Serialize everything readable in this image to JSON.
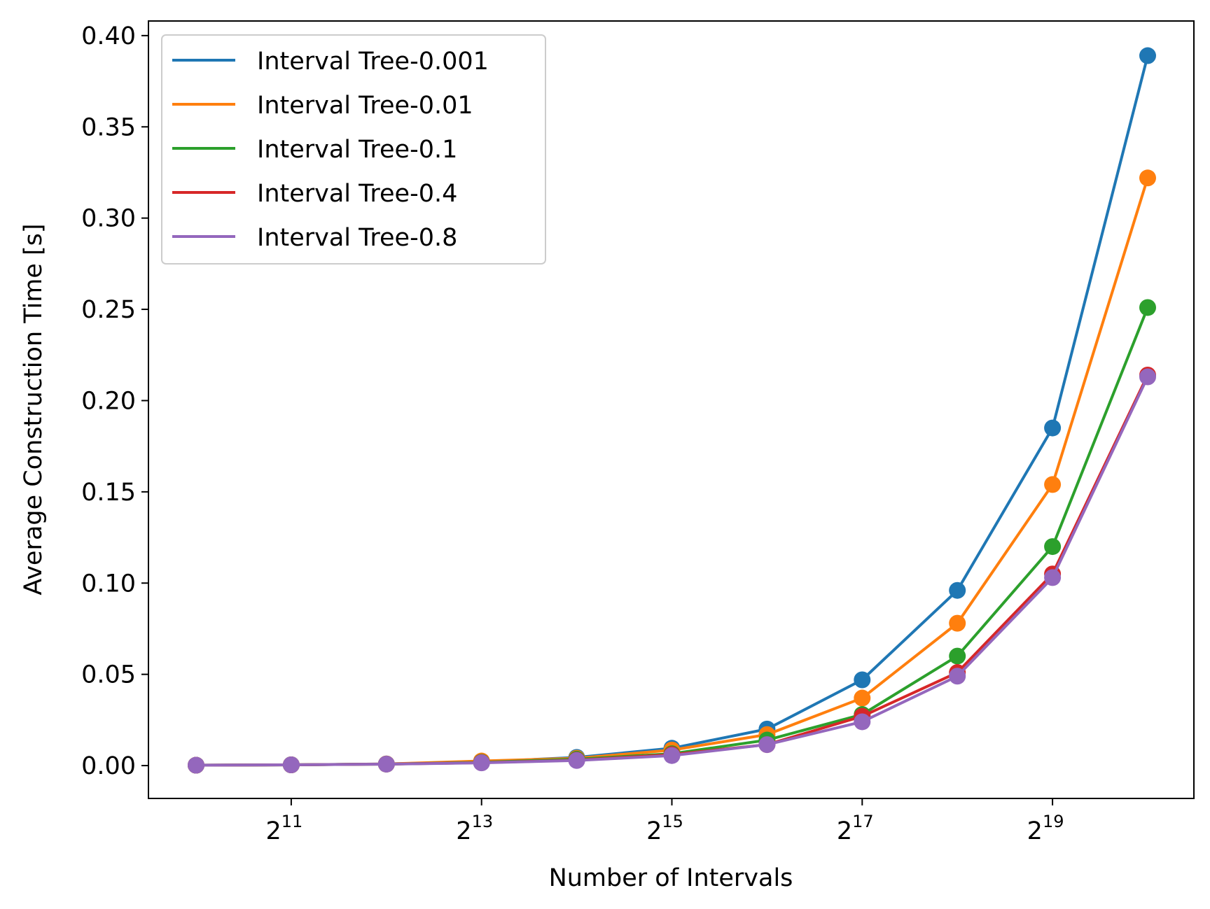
{
  "chart_data": {
    "type": "line",
    "xlabel": "Number of Intervals",
    "ylabel": "Average Construction Time [s]",
    "x_scale": "log2",
    "x": [
      1024,
      2048,
      4096,
      8192,
      16384,
      32768,
      65536,
      131072,
      262144,
      524288,
      1048576
    ],
    "xticks": [
      {
        "value": 2048,
        "base": "2",
        "exp": "11"
      },
      {
        "value": 8192,
        "base": "2",
        "exp": "13"
      },
      {
        "value": 32768,
        "base": "2",
        "exp": "15"
      },
      {
        "value": 131072,
        "base": "2",
        "exp": "17"
      },
      {
        "value": 524288,
        "base": "2",
        "exp": "19"
      }
    ],
    "ylim": [
      -0.018,
      0.408
    ],
    "yticks": [
      "0.00",
      "0.05",
      "0.10",
      "0.15",
      "0.20",
      "0.25",
      "0.30",
      "0.35",
      "0.40"
    ],
    "legend_position": "top-left",
    "grid": false,
    "series": [
      {
        "name": "Interval Tree-0.001",
        "color": "#1f77b4",
        "values": [
          0.0002,
          0.0004,
          0.0009,
          0.002,
          0.0045,
          0.0095,
          0.02,
          0.047,
          0.096,
          0.185,
          0.389
        ]
      },
      {
        "name": "Interval Tree-0.01",
        "color": "#ff7f0e",
        "values": [
          0.0002,
          0.0004,
          0.0009,
          0.0025,
          0.004,
          0.0085,
          0.017,
          0.037,
          0.078,
          0.154,
          0.322
        ]
      },
      {
        "name": "Interval Tree-0.1",
        "color": "#2ca02c",
        "values": [
          0.0002,
          0.0004,
          0.0008,
          0.0018,
          0.0035,
          0.0065,
          0.014,
          0.028,
          0.06,
          0.12,
          0.251
        ]
      },
      {
        "name": "Interval Tree-0.4",
        "color": "#d62728",
        "values": [
          0.0002,
          0.0004,
          0.0008,
          0.0016,
          0.003,
          0.006,
          0.0115,
          0.027,
          0.051,
          0.105,
          0.214
        ]
      },
      {
        "name": "Interval Tree-0.8",
        "color": "#9467bd",
        "values": [
          0.0002,
          0.0004,
          0.0008,
          0.0015,
          0.0028,
          0.0055,
          0.0115,
          0.024,
          0.049,
          0.103,
          0.213
        ]
      }
    ]
  }
}
